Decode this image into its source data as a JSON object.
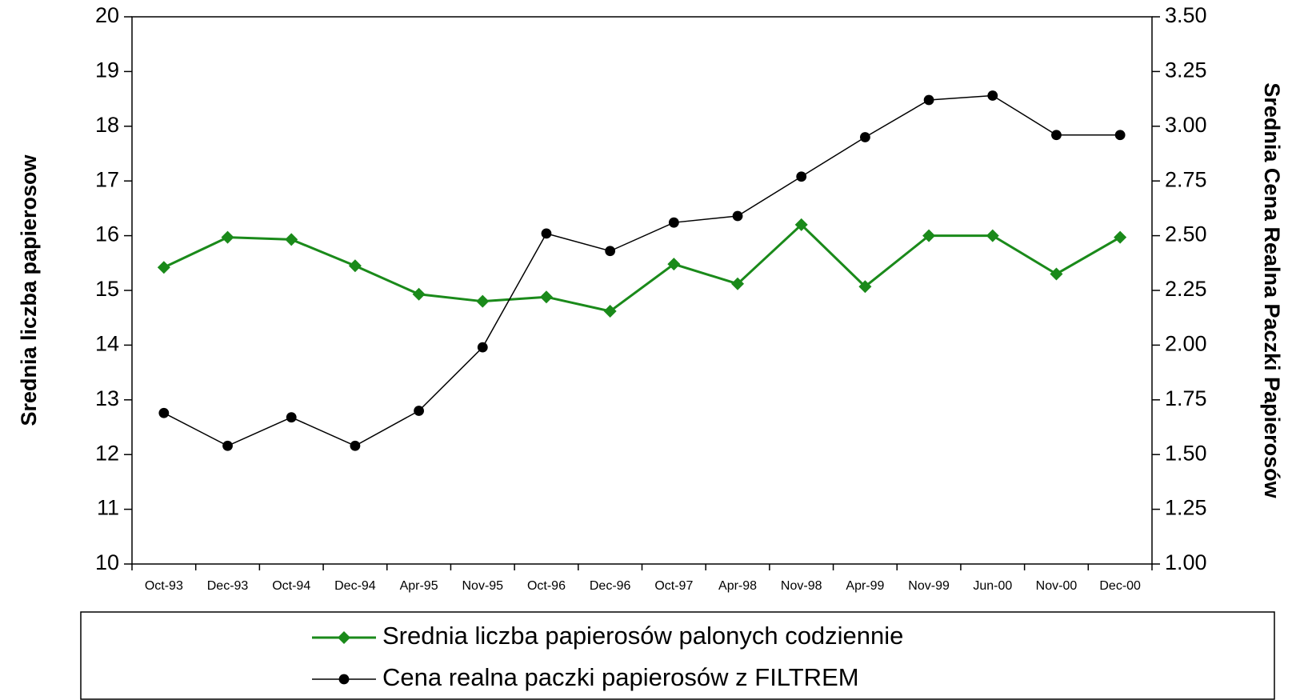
{
  "chart_data": {
    "type": "line",
    "ylabel": "Srednia liczba papierosow",
    "y2label": "Srednia Cena Realna Paczki Papierosów",
    "categories": [
      "Oct-93",
      "Dec-93",
      "Oct-94",
      "Dec-94",
      "Apr-95",
      "Nov-95",
      "Oct-96",
      "Dec-96",
      "Oct-97",
      "Apr-98",
      "Nov-98",
      "Apr-99",
      "Nov-99",
      "Jun-00",
      "Nov-00",
      "Dec-00"
    ],
    "series": [
      {
        "name": "Srednia liczba papierosów palonych codziennie",
        "color": "#1a8a1a",
        "marker": "diamond",
        "values": [
          15.42,
          15.97,
          15.93,
          15.45,
          14.93,
          14.8,
          14.88,
          14.62,
          15.48,
          15.12,
          16.2,
          15.07,
          16.0,
          16.0,
          15.3,
          15.97
        ]
      },
      {
        "name": "Cena realna paczki papierosów z FILTREM",
        "color": "#000000",
        "marker": "circle",
        "axis": "y2",
        "values": [
          1.69,
          1.54,
          1.67,
          1.54,
          1.7,
          1.99,
          2.51,
          2.43,
          2.56,
          2.59,
          2.77,
          2.95,
          3.12,
          3.14,
          2.96,
          2.96
        ]
      }
    ],
    "ylim": [
      10,
      20
    ],
    "yticks": [
      10,
      11,
      12,
      13,
      14,
      15,
      16,
      17,
      18,
      19,
      20
    ],
    "y2lim": [
      1.0,
      3.5
    ],
    "y2ticks": [
      {
        "value": 1.0,
        "label": "1.00"
      },
      {
        "value": 1.25,
        "label": "1.25"
      },
      {
        "value": 1.5,
        "label": "1.50"
      },
      {
        "value": 1.75,
        "label": "1.75"
      },
      {
        "value": 2.0,
        "label": "2.00"
      },
      {
        "value": 2.25,
        "label": "2.25"
      },
      {
        "value": 2.5,
        "label": "2.50"
      },
      {
        "value": 2.75,
        "label": "2.75"
      },
      {
        "value": 3.0,
        "label": "3.00"
      },
      {
        "value": 3.25,
        "label": "3.25"
      },
      {
        "value": 3.5,
        "label": "3.50"
      }
    ],
    "legend": "bottom"
  }
}
